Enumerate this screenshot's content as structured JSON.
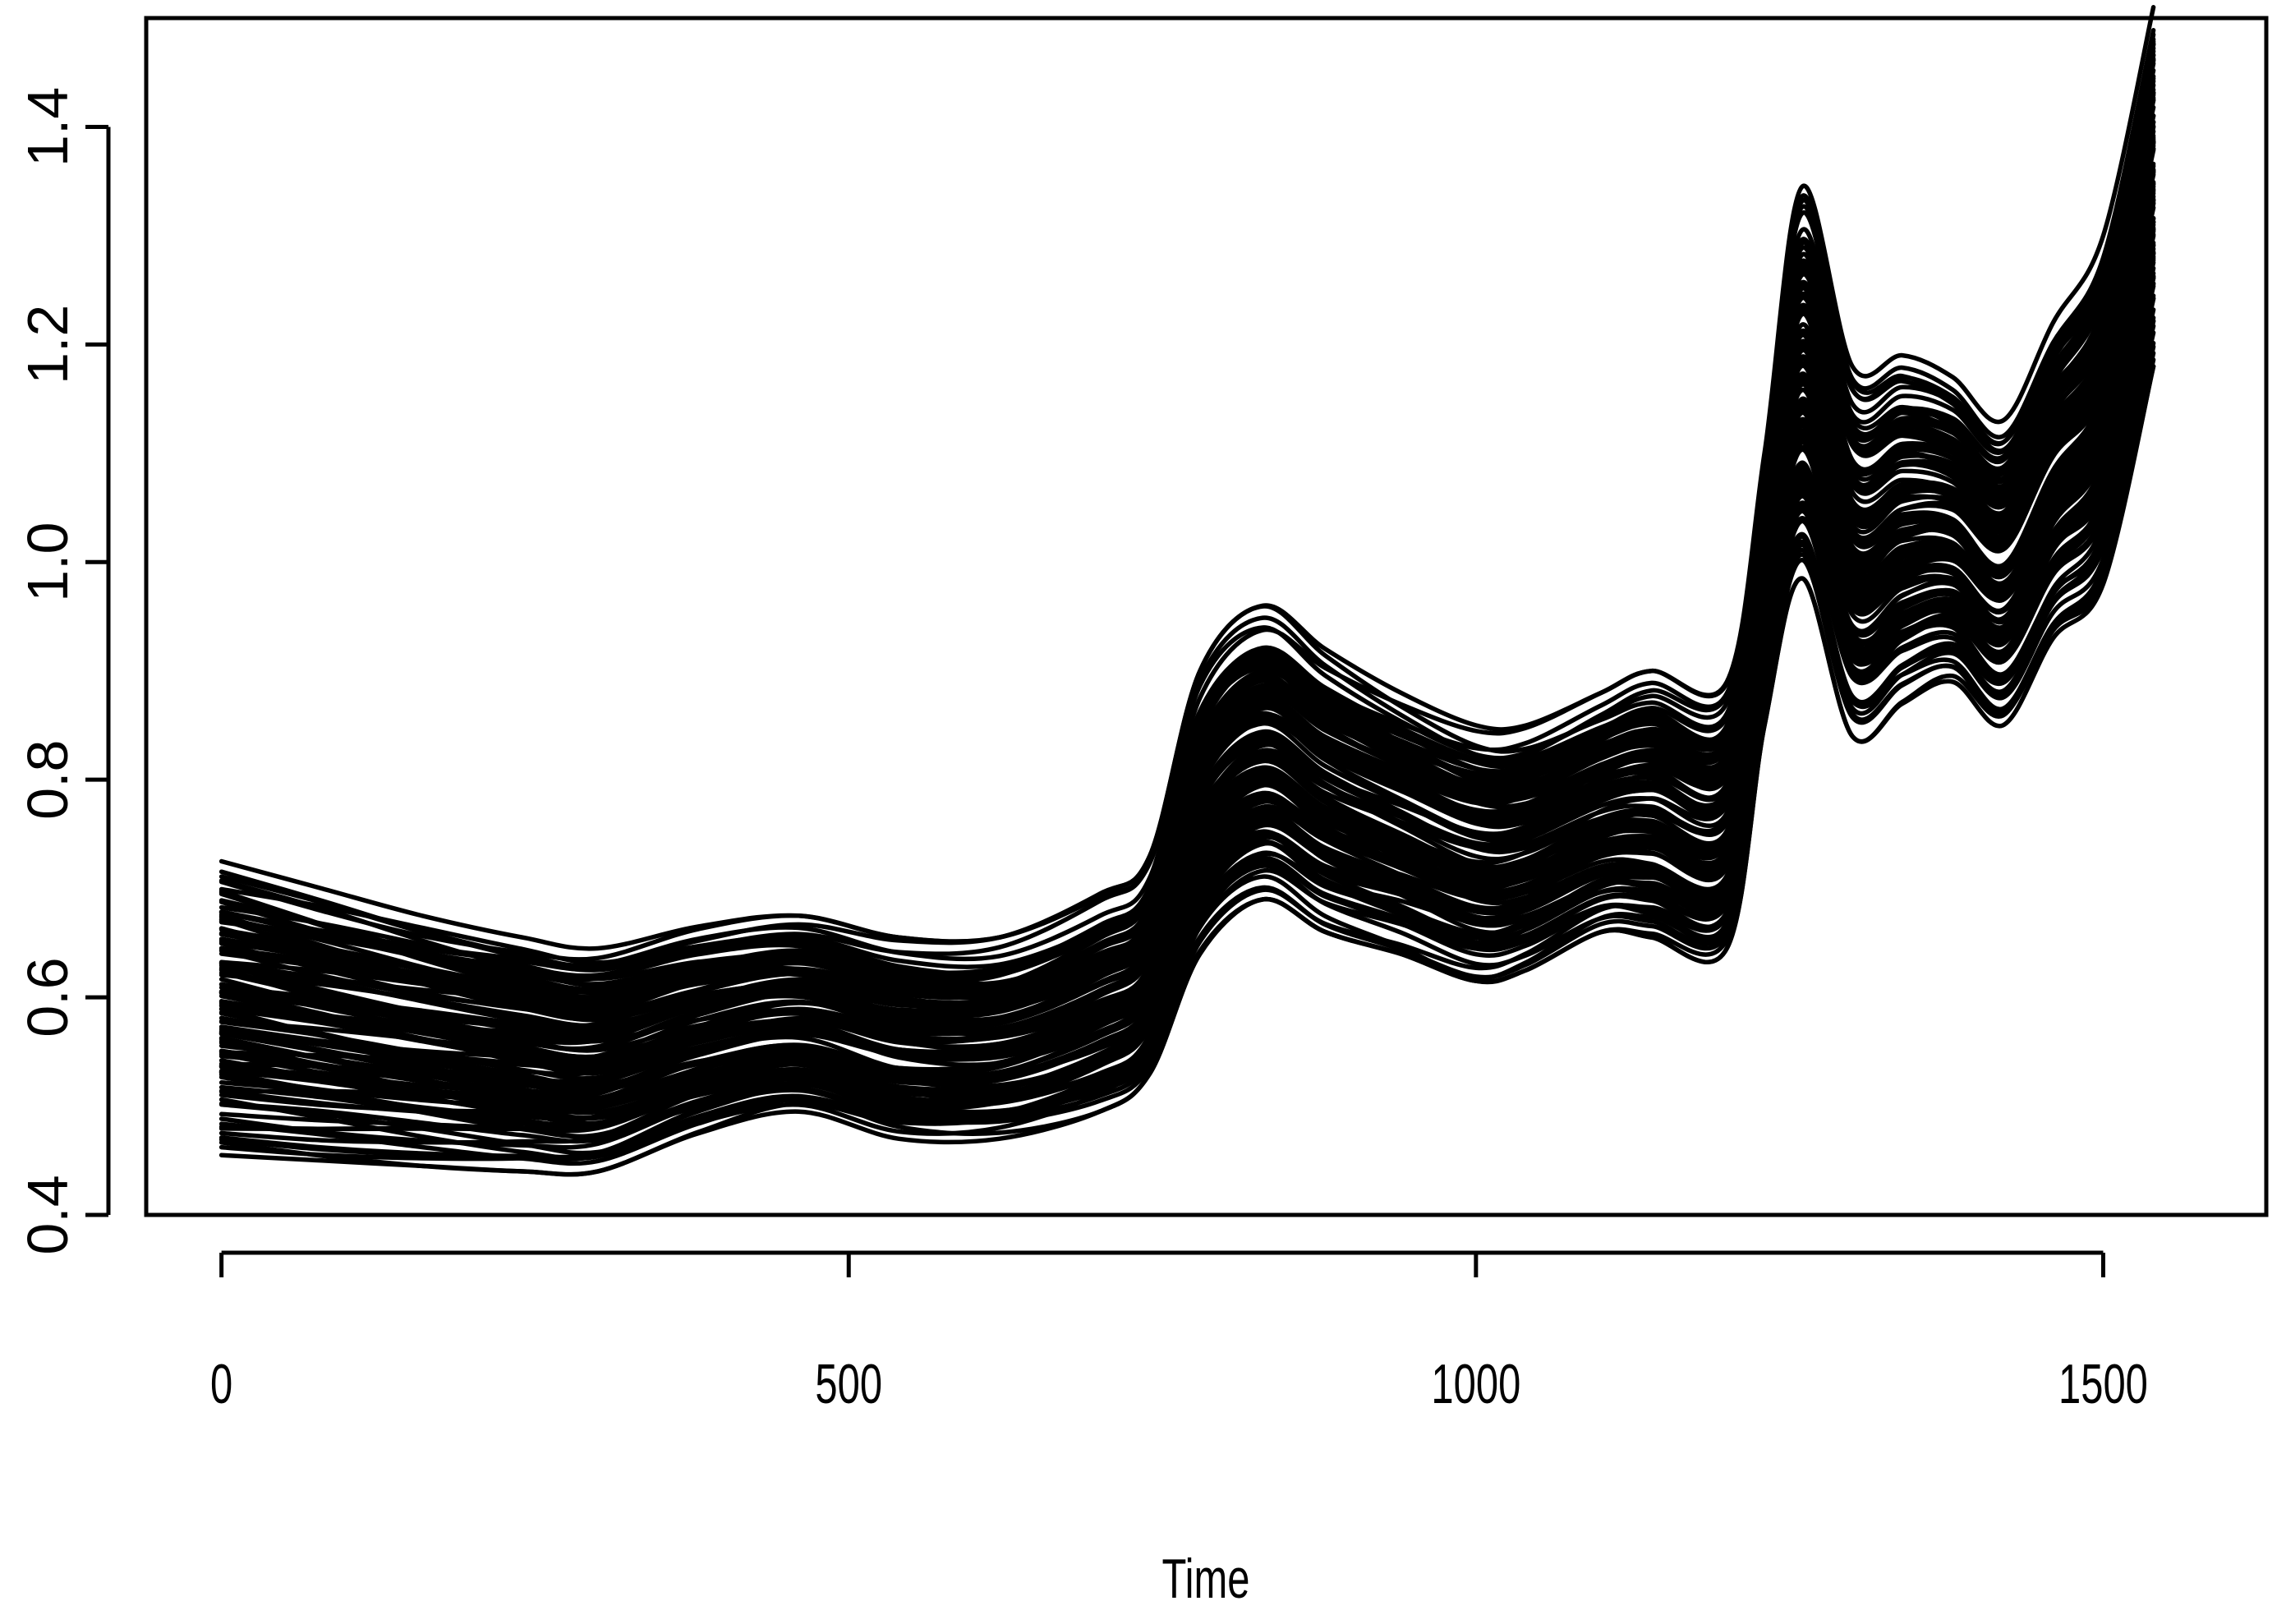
{
  "chart_data": {
    "type": "line",
    "title": "",
    "xlabel": "Time",
    "ylabel": "",
    "xlim": [
      -60,
      1630
    ],
    "ylim": [
      0.4,
      1.5
    ],
    "x_ticks": [
      0,
      500,
      1000,
      1500
    ],
    "x_tick_labels": [
      "0",
      "500",
      "1000",
      "1500"
    ],
    "y_ticks": [
      0.4,
      0.6,
      0.8,
      1.0,
      1.2,
      1.4
    ],
    "y_tick_labels": [
      "0.4",
      "0.6",
      "0.8",
      "1.0",
      "1.2",
      "1.4"
    ],
    "grid": false,
    "legend": "none",
    "line_color": "#000000",
    "series_count": 120,
    "x": [
      0,
      80,
      160,
      240,
      300,
      380,
      460,
      540,
      620,
      700,
      740,
      780,
      830,
      880,
      940,
      1000,
      1040,
      1100,
      1140,
      1200,
      1230,
      1260,
      1300,
      1340,
      1380,
      1420,
      1460,
      1500,
      1540
    ],
    "lower_envelope": [
      0.455,
      0.45,
      0.445,
      0.44,
      0.44,
      0.475,
      0.495,
      0.47,
      0.47,
      0.495,
      0.53,
      0.64,
      0.69,
      0.66,
      0.64,
      0.615,
      0.625,
      0.66,
      0.655,
      0.645,
      0.85,
      0.985,
      0.84,
      0.87,
      0.89,
      0.85,
      0.93,
      0.98,
      1.18
    ],
    "upper_envelope": [
      0.725,
      0.7,
      0.675,
      0.655,
      0.645,
      0.665,
      0.675,
      0.655,
      0.655,
      0.695,
      0.73,
      0.9,
      0.96,
      0.92,
      0.88,
      0.85,
      0.85,
      0.88,
      0.9,
      0.89,
      1.1,
      1.345,
      1.18,
      1.19,
      1.17,
      1.13,
      1.22,
      1.3,
      1.51
    ]
  }
}
